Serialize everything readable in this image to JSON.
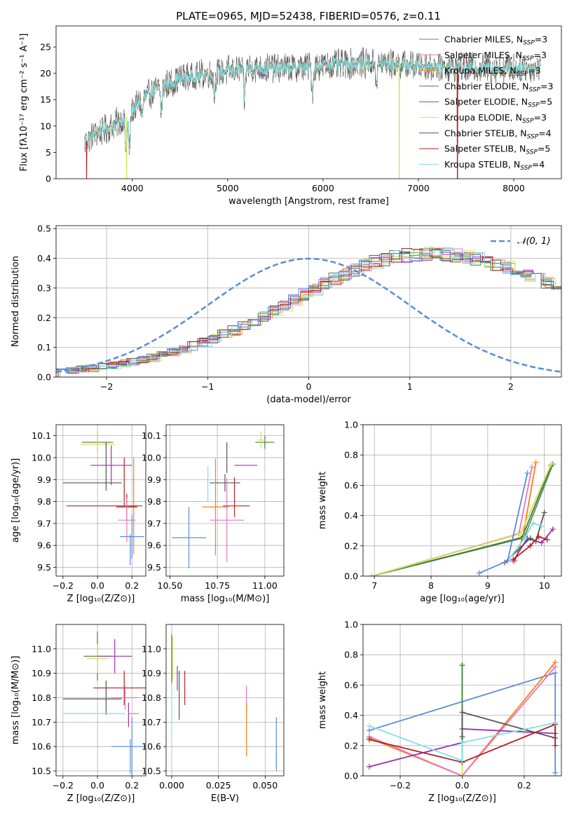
{
  "figure_title": "PLATE=0965, MJD=52438, FIBERID=0576, z=0.11",
  "colors": {
    "chabrier_miles": "#5b8c5a",
    "salpeter_miles": "#e377c2",
    "kroupa_miles": "#ff7f0e",
    "chabrier_elodie": "#3f7f3f",
    "salpeter_elodie": "#9b30b0",
    "kroupa_elodie": "#d4e157",
    "chabrier_stelib": "#555555",
    "salpeter_stelib": "#b22222",
    "kroupa_stelib": "#80deea",
    "blue": "#5b8bd9",
    "normal_curve": "#5b8bd9"
  },
  "chart_data": [
    {
      "id": "spectrum",
      "type": "line",
      "title": "PLATE=0965, MJD=52438, FIBERID=0576, z=0.11",
      "xlabel": "wavelength [Angstrom, rest frame]",
      "ylabel": "Flux [fλ10⁻¹⁷ erg cm⁻² s⁻¹ A⁻¹]",
      "xlim": [
        3200,
        8500
      ],
      "ylim": [
        0,
        29
      ],
      "xticks": [
        4000,
        5000,
        6000,
        7000,
        8000
      ],
      "yticks": [
        0,
        5,
        10,
        15,
        20,
        25
      ],
      "grid": false,
      "legend_position": "top-right",
      "legend": [
        "Chabrier MILES, N_SSP=3",
        "Salpeter MILES, N_SSP=3",
        "Kroupa MILES, N_SSP=3",
        "Chabrier ELODIE, N_SSP=3",
        "Salpeter ELODIE, N_SSP=5",
        "Kroupa ELODIE, N_SSP=3",
        "Chabrier STELIB, N_SSP=4",
        "Salpeter STELIB, N_SSP=5",
        "Kroupa STELIB, N_SSP=4"
      ],
      "continuum": [
        [
          3500,
          7
        ],
        [
          3650,
          9
        ],
        [
          3800,
          10
        ],
        [
          3950,
          12
        ],
        [
          4100,
          15
        ],
        [
          4300,
          17.5
        ],
        [
          4500,
          19
        ],
        [
          4800,
          20
        ],
        [
          5200,
          21
        ],
        [
          5600,
          21
        ],
        [
          6000,
          21.5
        ],
        [
          6500,
          22
        ],
        [
          7000,
          21.5
        ],
        [
          7500,
          21
        ],
        [
          8000,
          21
        ],
        [
          8280,
          21
        ]
      ],
      "absorption_lines": [
        [
          3934,
          7
        ],
        [
          3969,
          7
        ],
        [
          4102,
          3
        ],
        [
          4304,
          5
        ],
        [
          4861,
          4
        ],
        [
          5175,
          6
        ],
        [
          5890,
          5
        ],
        [
          6563,
          4
        ]
      ],
      "dropouts": [
        {
          "series": "Salpeter STELIB, N_SSP=5",
          "x": 3520
        },
        {
          "series": "Kroupa ELODIE, N_SSP=3",
          "x": 3940
        },
        {
          "series": "Kroupa ELODIE, N_SSP=3",
          "x": 6800
        },
        {
          "series": "Salpeter STELIB, N_SSP=5",
          "x": 7410
        }
      ]
    },
    {
      "id": "residuals",
      "type": "histogram",
      "xlabel": "(data-model)/error",
      "ylabel": "Normed distribution",
      "xlim": [
        -2.5,
        2.5
      ],
      "ylim": [
        0,
        0.51
      ],
      "xticks": [
        -2,
        -1,
        0,
        1,
        2
      ],
      "yticks": [
        0.0,
        0.1,
        0.2,
        0.3,
        0.4,
        0.5
      ],
      "grid": true,
      "legend_position": "top-right",
      "legend": [
        "𝒩(0, 1)"
      ],
      "bin_width": 0.1,
      "approx_profile": [
        0.024,
        0.025,
        0.028,
        0.031,
        0.036,
        0.04,
        0.046,
        0.052,
        0.059,
        0.066,
        0.074,
        0.084,
        0.094,
        0.105,
        0.117,
        0.13,
        0.144,
        0.158,
        0.172,
        0.188,
        0.205,
        0.222,
        0.24,
        0.258,
        0.277,
        0.295,
        0.313,
        0.33,
        0.347,
        0.362,
        0.375,
        0.387,
        0.397,
        0.405,
        0.41,
        0.414,
        0.416,
        0.416,
        0.414,
        0.41,
        0.405,
        0.398,
        0.39,
        0.381,
        0.37,
        0.358,
        0.345,
        0.33,
        0.315,
        0.299,
        0.282,
        0.265,
        0.248,
        0.231,
        0.214,
        0.197,
        0.18,
        0.164,
        0.149,
        0.135,
        0.121,
        0.108,
        0.097,
        0.086,
        0.076,
        0.067,
        0.06,
        0.053,
        0.047,
        0.042,
        0.037,
        0.034,
        0.031,
        0.028,
        0.026,
        0.025,
        0.024,
        0.024,
        0.024,
        0.024
      ],
      "noise_amplitude": 0.03
    },
    {
      "id": "age_vs_Z",
      "type": "errorbar",
      "xlabel": "Z [log₁₀(Z/Z⊙)]",
      "ylabel": "age  [log₁₀(age/yr)]",
      "xlim": [
        -0.24,
        0.28
      ],
      "ylim": [
        9.46,
        10.15
      ],
      "xticks": [
        -0.2,
        0.0,
        0.2
      ],
      "yticks": [
        9.5,
        9.6,
        9.7,
        9.8,
        9.9,
        10.0,
        10.1
      ],
      "grid": true,
      "points": [
        {
          "c": "chabrier_elodie",
          "x": 0.0,
          "y": 10.07,
          "xerr": 0.09,
          "yerr": 0.05
        },
        {
          "c": "kroupa_elodie",
          "x": 0.0,
          "y": 10.06,
          "xerr": 0.1,
          "yerr": 0.06
        },
        {
          "c": "chabrier_stelib",
          "x": 0.05,
          "y": 9.96,
          "xerr": 0.0,
          "yerr": 0.11
        },
        {
          "c": "salpeter_elodie",
          "x": 0.08,
          "y": 9.965,
          "xerr": 0.12,
          "yerr": 0.09
        },
        {
          "c": "chabrier_stelib",
          "x": -0.03,
          "y": 9.885,
          "xerr": 0.17,
          "yerr": 0.0
        },
        {
          "c": "salpeter_stelib",
          "x": 0.155,
          "y": 9.89,
          "xerr": 0.0,
          "yerr": 0.11
        },
        {
          "c": "kroupa_miles",
          "x": 0.21,
          "y": 9.78,
          "xerr": 0.02,
          "yerr": 0.22
        },
        {
          "c": "salpeter_stelib",
          "x": 0.04,
          "y": 9.78,
          "xerr": 0.22,
          "yerr": 0.0
        },
        {
          "c": "kroupa_stelib",
          "x": -0.02,
          "y": 9.8,
          "xerr": 0.18,
          "yerr": 0.0
        },
        {
          "c": "salpeter_stelib",
          "x": 0.17,
          "y": 9.775,
          "xerr": 0.06,
          "yerr": 0.06
        },
        {
          "c": "salpeter_miles",
          "x": 0.17,
          "y": 9.715,
          "xerr": 0.05,
          "yerr": 0.1
        },
        {
          "c": "blue",
          "x": 0.2,
          "y": 9.64,
          "xerr": 0.07,
          "yerr": 0.1
        },
        {
          "c": "blue",
          "x": 0.19,
          "y": 9.58,
          "xerr": 0.0,
          "yerr": 0.07
        }
      ]
    },
    {
      "id": "age_vs_mass",
      "type": "errorbar",
      "xlabel": "mass [log₁₀(M/M⊙)]",
      "ylabel": "",
      "xlim": [
        10.48,
        11.1
      ],
      "ylim": [
        9.46,
        10.15
      ],
      "xticks": [
        10.5,
        10.75,
        11.0
      ],
      "yticks": [
        9.5,
        9.6,
        9.7,
        9.8,
        9.9,
        10.0,
        10.1
      ],
      "grid": true,
      "points": [
        {
          "c": "chabrier_elodie",
          "x": 11.0,
          "y": 10.07,
          "xerr": 0.05,
          "yerr": 0.03
        },
        {
          "c": "kroupa_elodie",
          "x": 10.98,
          "y": 10.08,
          "xerr": 0.02,
          "yerr": 0.04
        },
        {
          "c": "chabrier_stelib",
          "x": 10.8,
          "y": 10.0,
          "xerr": 0.0,
          "yerr": 0.07
        },
        {
          "c": "salpeter_elodie",
          "x": 10.9,
          "y": 9.965,
          "xerr": 0.06,
          "yerr": 0.0
        },
        {
          "c": "kroupa_stelib",
          "x": 10.7,
          "y": 9.88,
          "xerr": 0.0,
          "yerr": 0.08
        },
        {
          "c": "chabrier_stelib",
          "x": 10.79,
          "y": 9.885,
          "xerr": 0.08,
          "yerr": 0.04
        },
        {
          "c": "salpeter_stelib",
          "x": 10.84,
          "y": 9.82,
          "xerr": 0.0,
          "yerr": 0.09
        },
        {
          "c": "salpeter_stelib",
          "x": 10.85,
          "y": 9.78,
          "xerr": 0.07,
          "yerr": 0.0
        },
        {
          "c": "kroupa_stelib",
          "x": 10.75,
          "y": 9.8,
          "xerr": 0.04,
          "yerr": 0.0
        },
        {
          "c": "kroupa_miles",
          "x": 10.74,
          "y": 9.775,
          "xerr": 0.07,
          "yerr": 0.22
        },
        {
          "c": "salpeter_miles",
          "x": 10.8,
          "y": 9.715,
          "xerr": 0.09,
          "yerr": 0.19
        },
        {
          "c": "blue",
          "x": 10.6,
          "y": 9.635,
          "xerr": 0.09,
          "yerr": 0.14
        }
      ]
    },
    {
      "id": "weight_vs_age",
      "type": "line",
      "xlabel": "age  [log₁₀(age/yr)]",
      "ylabel": "mass weight",
      "xlim": [
        6.8,
        10.3
      ],
      "ylim": [
        0,
        1.0
      ],
      "xticks": [
        7,
        8,
        9,
        10
      ],
      "yticks": [
        0.0,
        0.2,
        0.4,
        0.6,
        0.8,
        1.0
      ],
      "grid": true,
      "series": [
        {
          "c": "chabrier_miles",
          "x": [
            6.95,
            9.65,
            10.15
          ],
          "y": [
            0.0,
            0.26,
            0.74
          ]
        },
        {
          "c": "salpeter_miles",
          "x": [
            6.95,
            9.55,
            9.78
          ],
          "y": [
            0.0,
            0.28,
            0.72
          ]
        },
        {
          "c": "kroupa_miles",
          "x": [
            9.48,
            9.62,
            9.85
          ],
          "y": [
            0.1,
            0.26,
            0.75
          ]
        },
        {
          "c": "chabrier_elodie",
          "x": [
            6.95,
            9.6,
            10.12
          ],
          "y": [
            0.0,
            0.25,
            0.73
          ]
        },
        {
          "c": "salpeter_elodie",
          "x": [
            9.45,
            9.7,
            9.95,
            10.15
          ],
          "y": [
            0.1,
            0.25,
            0.22,
            0.31
          ]
        },
        {
          "c": "kroupa_elodie",
          "x": [
            6.95,
            9.58,
            10.12
          ],
          "y": [
            0.0,
            0.28,
            0.74
          ]
        },
        {
          "c": "chabrier_stelib",
          "x": [
            9.3,
            9.75,
            9.85,
            10.0
          ],
          "y": [
            0.09,
            0.25,
            0.23,
            0.42
          ]
        },
        {
          "c": "salpeter_stelib",
          "x": [
            9.45,
            9.75,
            9.9,
            10.05
          ],
          "y": [
            0.11,
            0.2,
            0.26,
            0.24
          ]
        },
        {
          "c": "kroupa_stelib",
          "x": [
            9.35,
            9.65,
            9.8,
            9.95
          ],
          "y": [
            0.1,
            0.25,
            0.35,
            0.33
          ]
        },
        {
          "c": "blue",
          "x": [
            8.85,
            9.35,
            9.7
          ],
          "y": [
            0.02,
            0.1,
            0.68
          ]
        }
      ]
    },
    {
      "id": "mass_vs_Z",
      "type": "errorbar",
      "xlabel": "Z [log₁₀(Z/Z⊙)]",
      "ylabel": "mass [log₁₀(M/M⊙)]",
      "xlim": [
        -0.24,
        0.28
      ],
      "ylim": [
        10.48,
        11.1
      ],
      "xticks": [
        -0.2,
        0.0,
        0.2
      ],
      "yticks": [
        10.5,
        10.6,
        10.7,
        10.8,
        10.9,
        11.0
      ],
      "grid": true,
      "points": [
        {
          "c": "chabrier_elodie",
          "x": 0.0,
          "y": 10.97,
          "xerr": 0.08,
          "yerr": 0.1
        },
        {
          "c": "kroupa_elodie",
          "x": 0.0,
          "y": 10.96,
          "xerr": 0.06,
          "yerr": 0.06
        },
        {
          "c": "salpeter_elodie",
          "x": 0.1,
          "y": 10.97,
          "xerr": 0.1,
          "yerr": 0.07
        },
        {
          "c": "chabrier_stelib",
          "x": 0.05,
          "y": 10.8,
          "xerr": 0.0,
          "yerr": 0.07
        },
        {
          "c": "chabrier_stelib",
          "x": -0.03,
          "y": 10.795,
          "xerr": 0.17,
          "yerr": 0.0
        },
        {
          "c": "salpeter_stelib",
          "x": 0.155,
          "y": 10.84,
          "xerr": 0.18,
          "yerr": 0.07
        },
        {
          "c": "salpeter_miles",
          "x": 0.16,
          "y": 10.8,
          "xerr": 0.08,
          "yerr": 0.05
        },
        {
          "c": "kroupa_miles",
          "x": 0.21,
          "y": 10.735,
          "xerr": 0.03,
          "yerr": 0.0
        },
        {
          "c": "kroupa_stelib",
          "x": -0.02,
          "y": 10.735,
          "xerr": 0.18,
          "yerr": 0.0
        },
        {
          "c": "salpeter_elodie",
          "x": 0.18,
          "y": 10.73,
          "xerr": 0.0,
          "yerr": 0.05
        },
        {
          "c": "blue",
          "x": 0.2,
          "y": 10.6,
          "xerr": 0.12,
          "yerr": 0.12
        },
        {
          "c": "blue",
          "x": 0.19,
          "y": 10.56,
          "xerr": 0.0,
          "yerr": 0.07
        }
      ]
    },
    {
      "id": "mass_vs_ebv",
      "type": "errorbar",
      "xlabel": "E(B-V)",
      "ylabel": "",
      "xlim": [
        -0.003,
        0.06
      ],
      "ylim": [
        10.48,
        11.1
      ],
      "xticks": [
        0.0,
        0.025,
        0.05
      ],
      "yticks": [
        10.5,
        10.6,
        10.7,
        10.8,
        10.9,
        11.0
      ],
      "grid": true,
      "points": [
        {
          "c": "chabrier_elodie",
          "x": 0.0,
          "y": 10.96,
          "xerr": 0.0,
          "yerr": 0.1
        },
        {
          "c": "kroupa_elodie",
          "x": 0.0005,
          "y": 10.96,
          "xerr": 0.0,
          "yerr": 0.09
        },
        {
          "c": "kroupa_stelib",
          "x": 0.0,
          "y": 10.76,
          "xerr": 0.0,
          "yerr": 0.1
        },
        {
          "c": "chabrier_stelib",
          "x": 0.004,
          "y": 10.81,
          "xerr": 0.0,
          "yerr": 0.1
        },
        {
          "c": "salpeter_stelib",
          "x": 0.007,
          "y": 10.84,
          "xerr": 0.0,
          "yerr": 0.07
        },
        {
          "c": "salpeter_elodie",
          "x": 0.003,
          "y": 10.88,
          "xerr": 0.0,
          "yerr": 0.05
        },
        {
          "c": "salpeter_miles",
          "x": 0.04,
          "y": 10.8,
          "xerr": 0.0,
          "yerr": 0.05
        },
        {
          "c": "kroupa_miles",
          "x": 0.04,
          "y": 10.67,
          "xerr": 0.0,
          "yerr": 0.11
        },
        {
          "c": "blue",
          "x": 0.056,
          "y": 10.61,
          "xerr": 0.0,
          "yerr": 0.11
        }
      ]
    },
    {
      "id": "weight_vs_Z",
      "type": "line",
      "xlabel": "Z [log₁₀(Z/Z⊙)]",
      "ylabel": "mass weight",
      "xlim": [
        -0.32,
        0.32
      ],
      "ylim": [
        0,
        1.0
      ],
      "xticks": [
        -0.2,
        0.0,
        0.2
      ],
      "yticks": [
        0.0,
        0.2,
        0.4,
        0.6,
        0.8,
        1.0
      ],
      "grid": true,
      "series": [
        {
          "c": "blue",
          "x": [
            -0.3,
            0.3,
            0.3
          ],
          "y": [
            0.3,
            0.68,
            0.02
          ]
        },
        {
          "c": "kroupa_miles",
          "x": [
            -0.3,
            0.0,
            0.3
          ],
          "y": [
            0.25,
            0.0,
            0.75
          ]
        },
        {
          "c": "salpeter_miles",
          "x": [
            -0.3,
            0.0,
            0.3
          ],
          "y": [
            0.26,
            0.0,
            0.72
          ]
        },
        {
          "c": "kroupa_elodie",
          "x": [
            0.0,
            0.0,
            0.0
          ],
          "y": [
            0.0,
            0.74,
            0.25
          ]
        },
        {
          "c": "chabrier_elodie",
          "x": [
            0.0,
            0.0
          ],
          "y": [
            0.26,
            0.73
          ]
        },
        {
          "c": "salpeter_elodie",
          "x": [
            -0.3,
            0.0,
            0.0,
            0.3
          ],
          "y": [
            0.06,
            0.22,
            0.31,
            0.28
          ]
        },
        {
          "c": "chabrier_stelib",
          "x": [
            0.0,
            0.0,
            0.3,
            0.3
          ],
          "y": [
            0.09,
            0.42,
            0.25,
            0.35
          ]
        },
        {
          "c": "salpeter_stelib",
          "x": [
            -0.3,
            0.0,
            0.3,
            0.3
          ],
          "y": [
            0.24,
            0.09,
            0.34,
            0.2
          ]
        },
        {
          "c": "kroupa_stelib",
          "x": [
            -0.3,
            0.0,
            0.0,
            0.3
          ],
          "y": [
            0.33,
            0.1,
            0.22,
            0.35
          ]
        }
      ]
    }
  ]
}
